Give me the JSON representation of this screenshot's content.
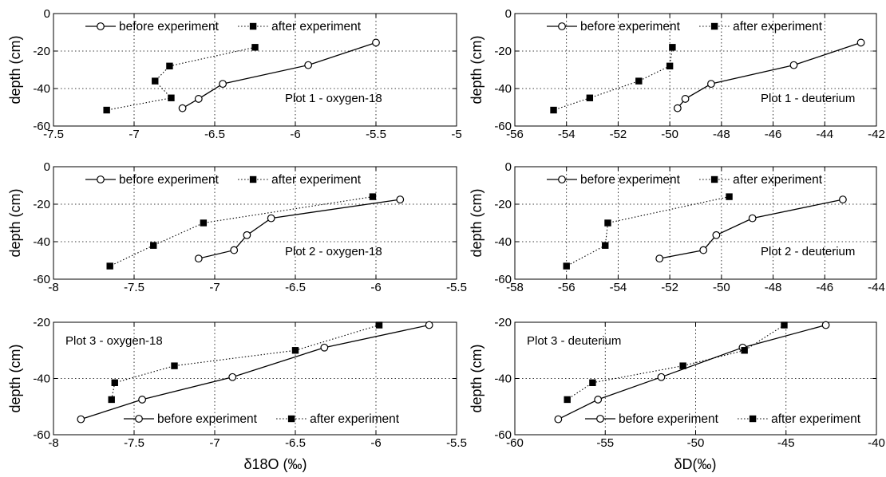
{
  "figure": {
    "xlabel_left": "δ18O (‰)",
    "xlabel_right": "δD(‰)"
  },
  "chart_data": [
    {
      "type": "line",
      "panel": "plot1-oxygen18",
      "annotation": "Plot 1 - oxygen-18",
      "ylabel": "depth (cm)",
      "xlim": [
        -7.5,
        -5
      ],
      "ylim": [
        -60,
        0
      ],
      "xticks": [
        "-7.5",
        "-7",
        "-6.5",
        "-6",
        "-5.5",
        "-5"
      ],
      "yticks": [
        "0",
        "-20",
        "-40",
        "-60"
      ],
      "grid": true,
      "legend": "top",
      "series": [
        {
          "name": "before experiment",
          "marker": "open-circle",
          "style": "solid",
          "x": [
            -5.5,
            -5.92,
            -6.45,
            -6.6,
            -6.7
          ],
          "y": [
            -15.5,
            -27.5,
            -37.5,
            -45.5,
            -50.5
          ]
        },
        {
          "name": "after experiment",
          "marker": "filled-square",
          "style": "dotted",
          "x": [
            -6.25,
            -6.78,
            -6.87,
            -6.77,
            -7.17
          ],
          "y": [
            -18,
            -28,
            -36,
            -45,
            -51.5
          ]
        }
      ]
    },
    {
      "type": "line",
      "panel": "plot1-deuterium",
      "annotation": "Plot 1 - deuterium",
      "ylabel": "depth (cm)",
      "xlim": [
        -56,
        -42
      ],
      "ylim": [
        -60,
        0
      ],
      "xticks": [
        "-56",
        "-54",
        "-52",
        "-50",
        "-48",
        "-46",
        "-44",
        "-42"
      ],
      "yticks": [
        "0",
        "-20",
        "-40",
        "-60"
      ],
      "grid": true,
      "legend": "top",
      "series": [
        {
          "name": "before experiment",
          "marker": "open-circle",
          "style": "solid",
          "x": [
            -42.6,
            -45.2,
            -48.4,
            -49.4,
            -49.7
          ],
          "y": [
            -15.5,
            -27.5,
            -37.5,
            -45.5,
            -50.5
          ]
        },
        {
          "name": "after experiment",
          "marker": "filled-square",
          "style": "dotted",
          "x": [
            -49.9,
            -50.0,
            -51.2,
            -53.1,
            -54.5
          ],
          "y": [
            -18,
            -28,
            -36,
            -45,
            -51.5
          ]
        }
      ]
    },
    {
      "type": "line",
      "panel": "plot2-oxygen18",
      "annotation": "Plot 2 - oxygen-18",
      "ylabel": "depth (cm)",
      "xlim": [
        -8,
        -5.5
      ],
      "ylim": [
        -60,
        0
      ],
      "xticks": [
        "-8",
        "-7.5",
        "-7",
        "-6.5",
        "-6",
        "-5.5"
      ],
      "yticks": [
        "0",
        "-20",
        "-40",
        "-60"
      ],
      "grid": true,
      "legend": "top",
      "series": [
        {
          "name": "before experiment",
          "marker": "open-circle",
          "style": "solid",
          "x": [
            -5.85,
            -6.65,
            -6.8,
            -6.88,
            -7.1
          ],
          "y": [
            -17.5,
            -27.5,
            -36.5,
            -44.5,
            -49
          ]
        },
        {
          "name": "after experiment",
          "marker": "filled-square",
          "style": "dotted",
          "x": [
            -6.02,
            -7.07,
            -7.38,
            -7.65
          ],
          "y": [
            -16,
            -30,
            -42,
            -53
          ]
        }
      ]
    },
    {
      "type": "line",
      "panel": "plot2-deuterium",
      "annotation": "Plot 2 - deuterium",
      "ylabel": "depth (cm)",
      "xlim": [
        -58,
        -44
      ],
      "ylim": [
        -60,
        0
      ],
      "xticks": [
        "-58",
        "-56",
        "-54",
        "-52",
        "-50",
        "-48",
        "-46",
        "-44"
      ],
      "yticks": [
        "0",
        "-20",
        "-40",
        "-60"
      ],
      "grid": true,
      "legend": "top",
      "series": [
        {
          "name": "before experiment",
          "marker": "open-circle",
          "style": "solid",
          "x": [
            -45.3,
            -48.8,
            -50.2,
            -50.7,
            -52.4
          ],
          "y": [
            -17.5,
            -27.5,
            -36.5,
            -44.5,
            -49
          ]
        },
        {
          "name": "after experiment",
          "marker": "filled-square",
          "style": "dotted",
          "x": [
            -49.7,
            -54.4,
            -54.5,
            -56.0
          ],
          "y": [
            -16,
            -30,
            -42,
            -53
          ]
        }
      ]
    },
    {
      "type": "line",
      "panel": "plot3-oxygen18",
      "annotation": "Plot 3 - oxygen-18",
      "ylabel": "depth (cm)",
      "xlim": [
        -8,
        -5.5
      ],
      "ylim": [
        -60,
        -20
      ],
      "xticks": [
        "-8",
        "-7.5",
        "-7",
        "-6.5",
        "-6",
        "-5.5"
      ],
      "yticks": [
        "-20",
        "-40",
        "-60"
      ],
      "grid": true,
      "legend": "bottom",
      "series": [
        {
          "name": "before experiment",
          "marker": "open-circle",
          "style": "solid",
          "x": [
            -5.67,
            -6.32,
            -6.89,
            -7.45,
            -7.83
          ],
          "y": [
            -21,
            -29,
            -39.5,
            -47.5,
            -54.5
          ]
        },
        {
          "name": "after experiment",
          "marker": "filled-square",
          "style": "dotted",
          "x": [
            -5.98,
            -6.5,
            -7.25,
            -7.62,
            -7.64
          ],
          "y": [
            -21,
            -30,
            -35.5,
            -41.5,
            -47.5
          ]
        }
      ]
    },
    {
      "type": "line",
      "panel": "plot3-deuterium",
      "annotation": "Plot 3 - deuterium",
      "ylabel": "depth (cm)",
      "xlim": [
        -60,
        -40
      ],
      "ylim": [
        -60,
        -20
      ],
      "xticks": [
        "-60",
        "-55",
        "-50",
        "-45",
        "-40"
      ],
      "yticks": [
        "-20",
        "-40",
        "-60"
      ],
      "grid": true,
      "legend": "bottom",
      "series": [
        {
          "name": "before experiment",
          "marker": "open-circle",
          "style": "solid",
          "x": [
            -42.8,
            -47.4,
            -51.9,
            -55.4,
            -57.6
          ],
          "y": [
            -21,
            -29,
            -39.5,
            -47.5,
            -54.5
          ]
        },
        {
          "name": "after experiment",
          "marker": "filled-square",
          "style": "dotted",
          "x": [
            -45.1,
            -47.3,
            -50.7,
            -55.7,
            -57.1
          ],
          "y": [
            -21,
            -30,
            -35.5,
            -41.5,
            -47.5
          ]
        }
      ]
    }
  ]
}
